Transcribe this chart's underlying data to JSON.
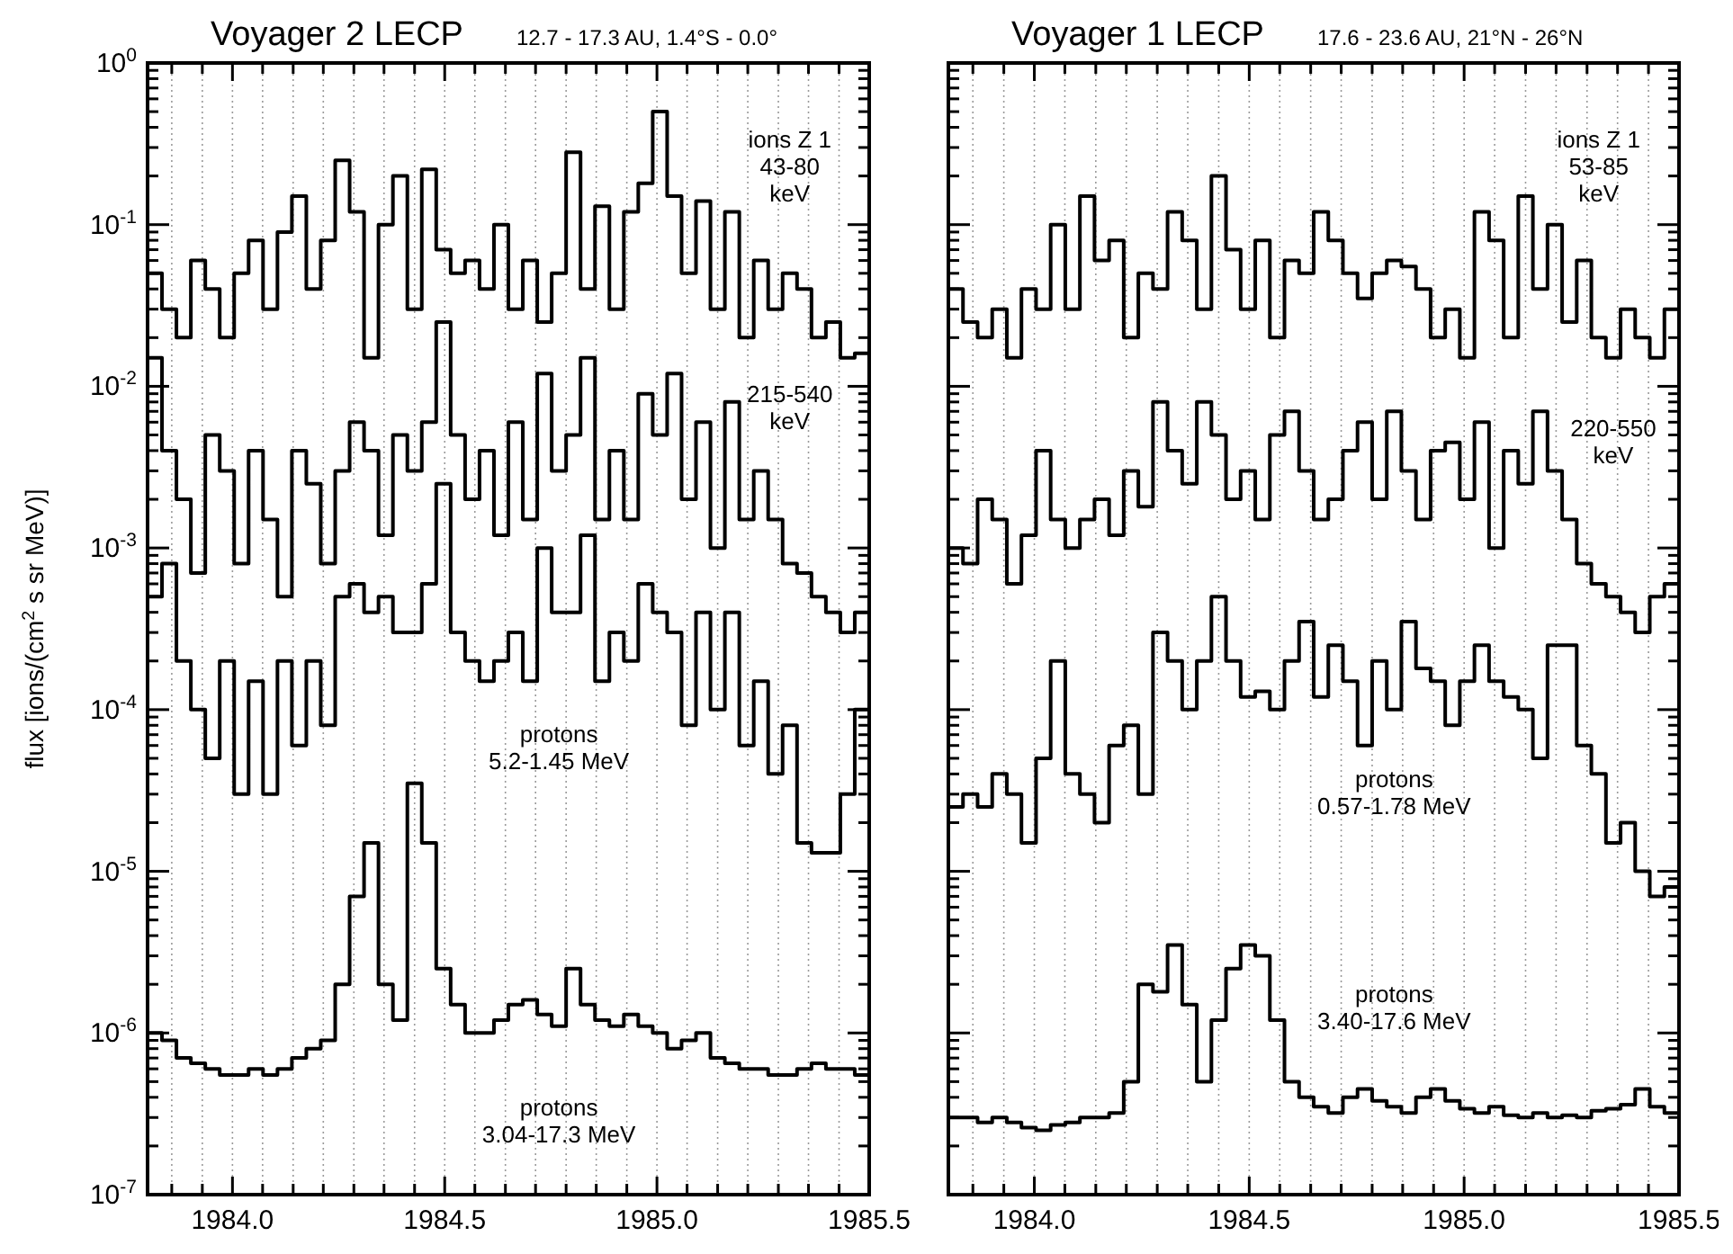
{
  "chart_data": [
    {
      "type": "step",
      "title": "Voyager 2 LECP",
      "subtitle": "12.7 - 17.3 AU, 1.4°S - 0.0°",
      "ylabel": "flux [ions/(cm$^{2}$ s sr MeV)]",
      "log": true,
      "legend": "right",
      "grid": "x",
      "xlim": [
        1983.8,
        1985.5
      ],
      "ylim": [
        1e-07,
        1
      ],
      "xticks": [
        {
          "value": 1983.857,
          "label": null
        },
        {
          "value": 1983.929,
          "label": null
        },
        {
          "value": 1984,
          "label": "1984.0"
        },
        {
          "value": 1984.071,
          "label": null
        },
        {
          "value": 1984.143,
          "label": null
        },
        {
          "value": 1984.214,
          "label": null
        },
        {
          "value": 1984.286,
          "label": null
        },
        {
          "value": 1984.357,
          "label": null
        },
        {
          "value": 1984.429,
          "label": null
        },
        {
          "value": 1984.5,
          "label": "1984.5"
        },
        {
          "value": 1984.571,
          "label": null
        },
        {
          "value": 1984.643,
          "label": null
        },
        {
          "value": 1984.714,
          "label": null
        },
        {
          "value": 1984.786,
          "label": null
        },
        {
          "value": 1984.857,
          "label": null
        },
        {
          "value": 1984.929,
          "label": null
        },
        {
          "value": 1985,
          "label": "1985.0"
        },
        {
          "value": 1985.071,
          "label": null
        },
        {
          "value": 1985.143,
          "label": null
        },
        {
          "value": 1985.214,
          "label": null
        },
        {
          "value": 1985.286,
          "label": null
        },
        {
          "value": 1985.357,
          "label": null
        },
        {
          "value": 1985.429,
          "label": null
        },
        {
          "value": 1985.5,
          "label": "1985.5"
        }
      ],
      "yticks": [
        {
          "value": 1e-07,
          "label": "10$^{-7}$"
        },
        {
          "value": 2e-07,
          "label": null
        },
        {
          "value": 3e-07,
          "label": null
        },
        {
          "value": 4e-07,
          "label": null
        },
        {
          "value": 5e-07,
          "label": null
        },
        {
          "value": 6e-07,
          "label": null
        },
        {
          "value": 7e-07,
          "label": null
        },
        {
          "value": 8e-07,
          "label": null
        },
        {
          "value": 9e-07,
          "label": null
        },
        {
          "value": 1e-06,
          "label": "10$^{-6}$"
        },
        {
          "value": 2e-06,
          "label": null
        },
        {
          "value": 3e-06,
          "label": null
        },
        {
          "value": 4e-06,
          "label": null
        },
        {
          "value": 5e-06,
          "label": null
        },
        {
          "value": 6e-06,
          "label": null
        },
        {
          "value": 7e-06,
          "label": null
        },
        {
          "value": 8e-06,
          "label": null
        },
        {
          "value": 9e-06,
          "label": null
        },
        {
          "value": 1e-05,
          "label": "10$^{-5}$"
        },
        {
          "value": 2e-05,
          "label": null
        },
        {
          "value": 3e-05,
          "label": null
        },
        {
          "value": 4e-05,
          "label": null
        },
        {
          "value": 5e-05,
          "label": null
        },
        {
          "value": 6e-05,
          "label": null
        },
        {
          "value": 7e-05,
          "label": null
        },
        {
          "value": 8e-05,
          "label": null
        },
        {
          "value": 9e-05,
          "label": null
        },
        {
          "value": 0.0001,
          "label": "10$^{-4}$"
        },
        {
          "value": 0.0002,
          "label": null
        },
        {
          "value": 0.0003,
          "label": null
        },
        {
          "value": 0.0004,
          "label": null
        },
        {
          "value": 0.0005,
          "label": null
        },
        {
          "value": 0.0006,
          "label": null
        },
        {
          "value": 0.0007,
          "label": null
        },
        {
          "value": 0.0008,
          "label": null
        },
        {
          "value": 0.0009,
          "label": null
        },
        {
          "value": 0.001,
          "label": "10$^{-3}$"
        },
        {
          "value": 0.002,
          "label": null
        },
        {
          "value": 0.003,
          "label": null
        },
        {
          "value": 0.004,
          "label": null
        },
        {
          "value": 0.005,
          "label": null
        },
        {
          "value": 0.006,
          "label": null
        },
        {
          "value": 0.007,
          "label": null
        },
        {
          "value": 0.008,
          "label": null
        },
        {
          "value": 0.009,
          "label": null
        },
        {
          "value": 0.01,
          "label": "10$^{-2}$"
        },
        {
          "value": 0.02,
          "label": null
        },
        {
          "value": 0.03,
          "label": null
        },
        {
          "value": 0.04,
          "label": null
        },
        {
          "value": 0.05,
          "label": null
        },
        {
          "value": 0.06,
          "label": null
        },
        {
          "value": 0.07,
          "label": null
        },
        {
          "value": 0.08,
          "label": null
        },
        {
          "value": 0.09,
          "label": null
        },
        {
          "value": 0.1,
          "label": "10$^{-1}$"
        },
        {
          "value": 0.2,
          "label": null
        },
        {
          "value": 0.3,
          "label": null
        },
        {
          "value": 0.4,
          "label": null
        },
        {
          "value": 0.5,
          "label": null
        },
        {
          "value": 0.6,
          "label": null
        },
        {
          "value": 0.7,
          "label": null
        },
        {
          "value": 0.8,
          "label": null
        },
        {
          "value": 0.9,
          "label": null
        },
        {
          "value": 1,
          "label": "10$^{0}$"
        }
      ],
      "x": [
        1983.8,
        1983.834,
        1983.868,
        1983.902,
        1983.936,
        1983.97,
        1984.004,
        1984.038,
        1984.072,
        1984.106,
        1984.14,
        1984.174,
        1984.208,
        1984.242,
        1984.276,
        1984.31,
        1984.344,
        1984.378,
        1984.412,
        1984.446,
        1984.48,
        1984.514,
        1984.548,
        1984.582,
        1984.616,
        1984.65,
        1984.684,
        1984.718,
        1984.752,
        1984.786,
        1984.82,
        1984.854,
        1984.888,
        1984.922,
        1984.956,
        1984.99,
        1985.024,
        1985.058,
        1985.092,
        1985.126,
        1985.16,
        1985.194,
        1985.228,
        1985.262,
        1985.296,
        1985.33,
        1985.364,
        1985.398,
        1985.432,
        1985.466,
        1985.5
      ],
      "series": [
        {
          "name": "ions Z 1\n43-80\nkeV",
          "color": "#000000",
          "values": [
            0.05,
            0.03,
            0.02,
            0.06,
            0.04,
            0.02,
            0.05,
            0.08,
            0.03,
            0.09,
            0.15,
            0.04,
            0.08,
            0.25,
            0.12,
            0.015,
            0.1,
            0.2,
            0.03,
            0.22,
            0.07,
            0.05,
            0.06,
            0.04,
            0.1,
            0.03,
            0.06,
            0.025,
            0.05,
            0.28,
            0.04,
            0.13,
            0.03,
            0.12,
            0.18,
            0.5,
            0.15,
            0.05,
            0.14,
            0.03,
            0.12,
            0.02,
            0.06,
            0.03,
            0.05,
            0.04,
            0.02,
            0.025,
            0.015,
            0.016,
            0.06
          ]
        },
        {
          "name": "215-540\nkeV",
          "color": "#000000",
          "values": [
            0.015,
            0.004,
            0.002,
            0.0007,
            0.005,
            0.003,
            0.0008,
            0.004,
            0.0015,
            0.0005,
            0.004,
            0.0025,
            0.0008,
            0.003,
            0.006,
            0.004,
            0.0012,
            0.005,
            0.003,
            0.006,
            0.025,
            0.005,
            0.002,
            0.004,
            0.0012,
            0.006,
            0.0015,
            0.012,
            0.003,
            0.005,
            0.015,
            0.0015,
            0.004,
            0.0015,
            0.009,
            0.005,
            0.012,
            0.002,
            0.006,
            0.001,
            0.008,
            0.0015,
            0.003,
            0.0015,
            0.0008,
            0.0007,
            0.0005,
            0.0004,
            0.0003,
            0.0004,
            0.002
          ]
        },
        {
          "name": "protons\n5.2-1.45 MeV",
          "color": "#000000",
          "values": [
            0.0005,
            0.0008,
            0.0002,
            0.0001,
            5e-05,
            0.0002,
            3e-05,
            0.00015,
            3e-05,
            0.0002,
            6e-05,
            0.0002,
            8e-05,
            0.0005,
            0.0006,
            0.0004,
            0.0005,
            0.0003,
            0.0003,
            0.0006,
            0.0025,
            0.0003,
            0.0002,
            0.00015,
            0.0002,
            0.0003,
            0.00015,
            0.001,
            0.0004,
            0.0004,
            0.0012,
            0.00015,
            0.0003,
            0.0002,
            0.0006,
            0.0004,
            0.0003,
            8e-05,
            0.0004,
            0.0001,
            0.0004,
            6e-05,
            0.00015,
            4e-05,
            8e-05,
            1.5e-05,
            1.3e-05,
            1.3e-05,
            3e-05,
            0.0001,
            2e-05
          ]
        },
        {
          "name": "protons\n3.04-17.3 MeV",
          "color": "#000000",
          "values": [
            1e-06,
            9e-07,
            7e-07,
            6.5e-07,
            6e-07,
            5.5e-07,
            5.5e-07,
            6e-07,
            5.5e-07,
            6e-07,
            7e-07,
            8e-07,
            9e-07,
            2e-06,
            7e-06,
            1.5e-05,
            2e-06,
            1.2e-06,
            3.5e-05,
            1.5e-05,
            2.5e-06,
            1.5e-06,
            1e-06,
            1e-06,
            1.2e-06,
            1.5e-06,
            1.6e-06,
            1.3e-06,
            1.1e-06,
            2.5e-06,
            1.5e-06,
            1.2e-06,
            1.1e-06,
            1.3e-06,
            1.1e-06,
            1e-06,
            8e-07,
            9e-07,
            1e-06,
            7e-07,
            6.5e-07,
            6e-07,
            6e-07,
            5.5e-07,
            5.5e-07,
            6e-07,
            6.5e-07,
            6e-07,
            6e-07,
            5.5e-07,
            5e-07
          ]
        }
      ]
    },
    {
      "type": "step",
      "title": "Voyager 1 LECP",
      "subtitle": "17.6 - 23.6 AU, 21°N - 26°N",
      "log": true,
      "legend": "right",
      "grid": "x",
      "tick_labels": "x",
      "xlim": [
        1983.8,
        1985.5
      ],
      "ylim": [
        1e-07,
        1
      ],
      "xticks": [
        {
          "value": 1983.857,
          "label": null
        },
        {
          "value": 1983.929,
          "label": null
        },
        {
          "value": 1984,
          "label": "1984.0"
        },
        {
          "value": 1984.071,
          "label": null
        },
        {
          "value": 1984.143,
          "label": null
        },
        {
          "value": 1984.214,
          "label": null
        },
        {
          "value": 1984.286,
          "label": null
        },
        {
          "value": 1984.357,
          "label": null
        },
        {
          "value": 1984.429,
          "label": null
        },
        {
          "value": 1984.5,
          "label": "1984.5"
        },
        {
          "value": 1984.571,
          "label": null
        },
        {
          "value": 1984.643,
          "label": null
        },
        {
          "value": 1984.714,
          "label": null
        },
        {
          "value": 1984.786,
          "label": null
        },
        {
          "value": 1984.857,
          "label": null
        },
        {
          "value": 1984.929,
          "label": null
        },
        {
          "value": 1985,
          "label": "1985.0"
        },
        {
          "value": 1985.071,
          "label": null
        },
        {
          "value": 1985.143,
          "label": null
        },
        {
          "value": 1985.214,
          "label": null
        },
        {
          "value": 1985.286,
          "label": null
        },
        {
          "value": 1985.357,
          "label": null
        },
        {
          "value": 1985.429,
          "label": null
        },
        {
          "value": 1985.5,
          "label": "1985.5"
        }
      ],
      "yticks": [
        1e-07,
        2e-07,
        3e-07,
        4e-07,
        5e-07,
        6e-07,
        7e-07,
        8e-07,
        9e-07,
        1e-06,
        2e-06,
        3e-06,
        4e-06,
        5e-06,
        6e-06,
        7e-06,
        8e-06,
        9e-06,
        1e-05,
        2e-05,
        3e-05,
        4e-05,
        5e-05,
        6e-05,
        7e-05,
        8e-05,
        9e-05,
        0.0001,
        0.0002,
        0.0003,
        0.0004,
        0.0005,
        0.0006,
        0.0007,
        0.0008,
        0.0009,
        0.001,
        0.002,
        0.003,
        0.004,
        0.005,
        0.006,
        0.007,
        0.008,
        0.009,
        0.01,
        0.02,
        0.03,
        0.04,
        0.05,
        0.06,
        0.07,
        0.08,
        0.09,
        0.1,
        0.2,
        0.3,
        0.4,
        0.5,
        0.6,
        0.7,
        0.8,
        0.9,
        1
      ],
      "x": [
        1983.8,
        1983.834,
        1983.868,
        1983.902,
        1983.936,
        1983.97,
        1984.004,
        1984.038,
        1984.072,
        1984.106,
        1984.14,
        1984.174,
        1984.208,
        1984.242,
        1984.276,
        1984.31,
        1984.344,
        1984.378,
        1984.412,
        1984.446,
        1984.48,
        1984.514,
        1984.548,
        1984.582,
        1984.616,
        1984.65,
        1984.684,
        1984.718,
        1984.752,
        1984.786,
        1984.82,
        1984.854,
        1984.888,
        1984.922,
        1984.956,
        1984.99,
        1985.024,
        1985.058,
        1985.092,
        1985.126,
        1985.16,
        1985.194,
        1985.228,
        1985.262,
        1985.296,
        1985.33,
        1985.364,
        1985.398,
        1985.432,
        1985.466,
        1985.5
      ],
      "series": [
        {
          "name": "ions Z 1\n53-85\nkeV",
          "color": "#000000",
          "values": [
            0.04,
            0.025,
            0.02,
            0.03,
            0.015,
            0.04,
            0.03,
            0.1,
            0.03,
            0.15,
            0.06,
            0.08,
            0.02,
            0.05,
            0.04,
            0.12,
            0.08,
            0.03,
            0.2,
            0.07,
            0.03,
            0.08,
            0.02,
            0.06,
            0.05,
            0.12,
            0.08,
            0.05,
            0.035,
            0.05,
            0.06,
            0.055,
            0.04,
            0.02,
            0.03,
            0.015,
            0.12,
            0.08,
            0.02,
            0.15,
            0.04,
            0.1,
            0.025,
            0.06,
            0.02,
            0.015,
            0.03,
            0.02,
            0.015,
            0.03,
            0.02
          ]
        },
        {
          "name": "220-550\nkeV",
          "color": "#000000",
          "values": [
            0.001,
            0.0008,
            0.002,
            0.0015,
            0.0006,
            0.0012,
            0.004,
            0.0015,
            0.001,
            0.0015,
            0.002,
            0.0012,
            0.003,
            0.0018,
            0.008,
            0.004,
            0.0025,
            0.008,
            0.005,
            0.002,
            0.003,
            0.0015,
            0.005,
            0.007,
            0.003,
            0.0015,
            0.002,
            0.004,
            0.006,
            0.002,
            0.007,
            0.003,
            0.0015,
            0.004,
            0.0045,
            0.002,
            0.006,
            0.001,
            0.004,
            0.0025,
            0.007,
            0.003,
            0.0015,
            0.0008,
            0.0006,
            0.0005,
            0.0004,
            0.0003,
            0.0005,
            0.0006,
            0.0005
          ]
        },
        {
          "name": "protons\n0.57-1.78 MeV",
          "color": "#000000",
          "values": [
            2.5e-05,
            3e-05,
            2.5e-05,
            4e-05,
            3e-05,
            1.5e-05,
            5e-05,
            0.0002,
            4e-05,
            3e-05,
            2e-05,
            6e-05,
            8e-05,
            3e-05,
            0.0003,
            0.0002,
            0.0001,
            0.0002,
            0.0005,
            0.0002,
            0.00012,
            0.00013,
            0.0001,
            0.0002,
            0.00035,
            0.00012,
            0.00025,
            0.00015,
            6e-05,
            0.0002,
            0.0001,
            0.00035,
            0.00018,
            0.00015,
            8e-05,
            0.00015,
            0.00025,
            0.00015,
            0.00012,
            0.0001,
            5e-05,
            0.00025,
            0.00025,
            6e-05,
            4e-05,
            1.5e-05,
            2e-05,
            1e-05,
            7e-06,
            8e-06,
            2e-05
          ]
        },
        {
          "name": "protons\n3.40-17.6 MeV",
          "color": "#000000",
          "values": [
            3e-07,
            3e-07,
            2.8e-07,
            3e-07,
            2.8e-07,
            2.6e-07,
            2.5e-07,
            2.7e-07,
            2.8e-07,
            3e-07,
            3e-07,
            3.2e-07,
            5e-07,
            2e-06,
            1.8e-06,
            3.5e-06,
            1.5e-06,
            5e-07,
            1.2e-06,
            2.5e-06,
            3.5e-06,
            3e-06,
            1.2e-06,
            5e-07,
            4e-07,
            3.5e-07,
            3.2e-07,
            4e-07,
            4.5e-07,
            3.8e-07,
            3.5e-07,
            3.2e-07,
            4e-07,
            4.5e-07,
            3.8e-07,
            3.4e-07,
            3.2e-07,
            3.5e-07,
            3.1e-07,
            3e-07,
            3.2e-07,
            3e-07,
            3.1e-07,
            3e-07,
            3.3e-07,
            3.4e-07,
            3.6e-07,
            4.5e-07,
            3.5e-07,
            3.2e-07,
            3e-07
          ]
        }
      ]
    }
  ]
}
